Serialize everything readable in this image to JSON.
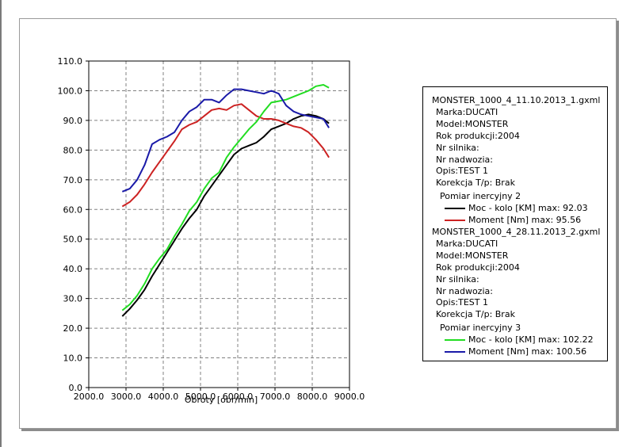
{
  "chart_data": {
    "type": "line",
    "xlabel": "Obroty [obr/min]",
    "ylabel": "",
    "xlim": [
      2000,
      9000
    ],
    "ylim": [
      0,
      110
    ],
    "x_ticks": [
      "2000.0",
      "3000.0",
      "4000.0",
      "5000.0",
      "6000.0",
      "7000.0",
      "8000.0",
      "9000.0"
    ],
    "y_ticks": [
      "0.0",
      "10.0",
      "20.0",
      "30.0",
      "40.0",
      "50.0",
      "60.0",
      "70.0",
      "80.0",
      "90.0",
      "100.0",
      "110.0"
    ],
    "grid": true,
    "legend_position": "right",
    "series": [
      {
        "name": "Moc - kolo [KM] max: 92.03",
        "color": "#000000",
        "x": [
          2900,
          3100,
          3300,
          3500,
          3700,
          3900,
          4100,
          4300,
          4500,
          4700,
          4900,
          5100,
          5300,
          5500,
          5700,
          5900,
          6100,
          6300,
          6500,
          6700,
          6900,
          7100,
          7300,
          7500,
          7700,
          7900,
          8100,
          8300,
          8450
        ],
        "y": [
          24,
          26.5,
          29.5,
          33,
          37.5,
          41.5,
          45.5,
          49.5,
          53.5,
          57,
          60,
          64.5,
          68,
          71.5,
          75,
          78.5,
          80.5,
          81.5,
          82.5,
          84.5,
          87,
          88,
          89,
          90.5,
          91.5,
          92,
          91.5,
          90.5,
          89
        ]
      },
      {
        "name": "Moment [Nm] max: 95.56",
        "color": "#cc2222",
        "x": [
          2900,
          3100,
          3300,
          3500,
          3700,
          3900,
          4100,
          4300,
          4500,
          4700,
          4900,
          5100,
          5300,
          5500,
          5700,
          5900,
          6100,
          6300,
          6500,
          6700,
          6900,
          7100,
          7300,
          7500,
          7700,
          7900,
          8100,
          8300,
          8450
        ],
        "y": [
          61,
          62.5,
          65,
          68.5,
          72.5,
          76,
          79.5,
          83,
          87,
          88.5,
          89.5,
          91.5,
          93.5,
          94,
          93.5,
          95,
          95.5,
          93.5,
          91.5,
          90.5,
          90.5,
          90,
          89,
          88,
          87.5,
          86,
          83.5,
          80.5,
          77.5
        ]
      },
      {
        "name": "Moc - kolo [KM] max: 102.22",
        "color": "#22dd22",
        "x": [
          2900,
          3100,
          3300,
          3500,
          3700,
          3900,
          4100,
          4300,
          4500,
          4700,
          4900,
          5100,
          5300,
          5500,
          5700,
          5900,
          6100,
          6300,
          6500,
          6700,
          6900,
          7100,
          7300,
          7500,
          7700,
          7900,
          8100,
          8300,
          8450
        ],
        "y": [
          26,
          28,
          31,
          35,
          40,
          43.5,
          46.5,
          51,
          55,
          59.5,
          62.5,
          67,
          70.5,
          72.5,
          77.5,
          81,
          84,
          87,
          89.5,
          93,
          96,
          96.5,
          97,
          98,
          99,
          100,
          101.5,
          102,
          101
        ]
      },
      {
        "name": "Moment [Nm] max: 100.56",
        "color": "#1a1aa8",
        "x": [
          2900,
          3100,
          3300,
          3500,
          3700,
          3900,
          4100,
          4300,
          4500,
          4700,
          4900,
          5100,
          5300,
          5500,
          5700,
          5900,
          6100,
          6300,
          6500,
          6700,
          6900,
          7100,
          7300,
          7500,
          7700,
          7900,
          8100,
          8300,
          8450
        ],
        "y": [
          66,
          67,
          70,
          75,
          82,
          83.5,
          84.5,
          86,
          90,
          93,
          94.5,
          97,
          97,
          96,
          98.5,
          100.5,
          100.5,
          100,
          99.5,
          99,
          100,
          99,
          95,
          93,
          92,
          91.5,
          91,
          90.5,
          87.5
        ]
      }
    ]
  },
  "legend": {
    "groups": [
      {
        "file": "MONSTER_1000_4_11.10.2013_1.gxml",
        "marka": "Marka:DUCATI",
        "model": "Model:MONSTER",
        "rok": "Rok produkcji:2004",
        "silnik": "Nr silnika:",
        "nadwozie": "Nr nadwozia:",
        "opis": "Opis:TEST 1",
        "korekcja": "Korekcja T/p: Brak",
        "pomiar": "Pomiar inercyjny 2",
        "entry1": "Moc - kolo [KM] max: 92.03",
        "entry2": "Moment [Nm] max: 95.56"
      },
      {
        "file": "MONSTER_1000_4_28.11.2013_2.gxml",
        "marka": "Marka:DUCATI",
        "model": "Model:MONSTER",
        "rok": "Rok produkcji:2004",
        "silnik": "Nr silnika:",
        "nadwozie": "Nr nadwozia:",
        "opis": "Opis:TEST 1",
        "korekcja": "Korekcja T/p: Brak",
        "pomiar": "Pomiar inercyjny 3",
        "entry1": "Moc - kolo [KM] max: 102.22",
        "entry2": "Moment [Nm] max: 100.56"
      }
    ],
    "colors": [
      "#000000",
      "#cc2222",
      "#22dd22",
      "#1a1aa8"
    ]
  }
}
